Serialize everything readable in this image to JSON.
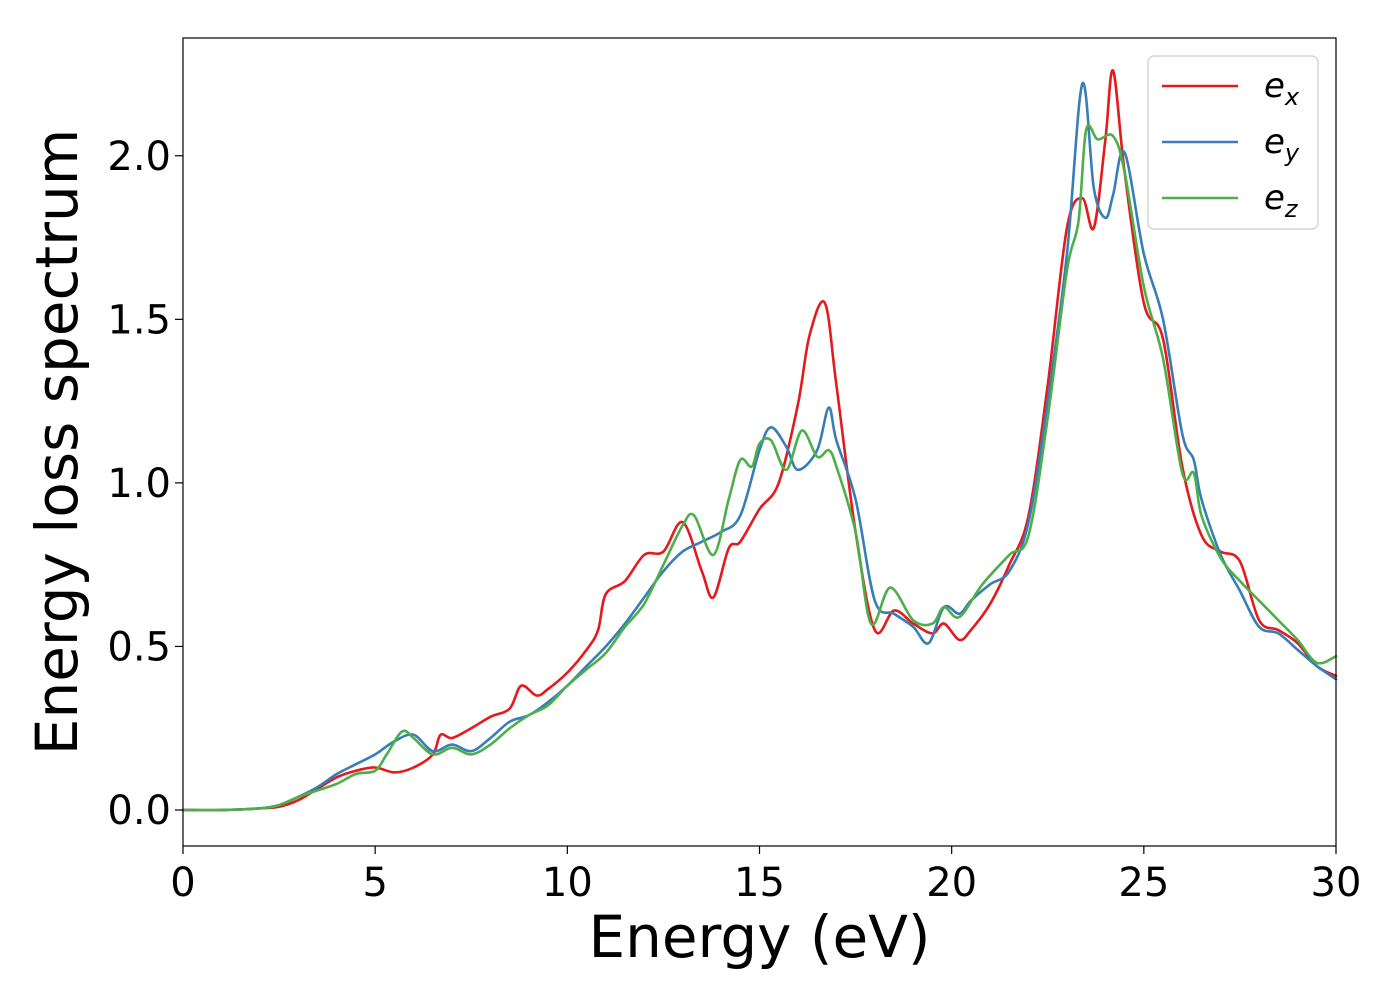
{
  "chart_data": {
    "type": "line",
    "title": "",
    "xlabel": "Energy (eV)",
    "ylabel": "Energy loss spectrum",
    "xlim": [
      0,
      30
    ],
    "ylim": [
      -0.11,
      2.36
    ],
    "xticks": [
      0,
      5,
      10,
      15,
      20,
      25,
      30
    ],
    "xtick_labels": [
      "0",
      "5",
      "10",
      "15",
      "20",
      "25",
      "30"
    ],
    "yticks": [
      0.0,
      0.5,
      1.0,
      1.5,
      2.0
    ],
    "ytick_labels": [
      "0.0",
      "0.5",
      "1.0",
      "1.5",
      "2.0"
    ],
    "grid": false,
    "legend_position": "top-right",
    "series": [
      {
        "name": "e_x",
        "label_base": "e",
        "label_sub": "x",
        "color": "#e41a1c",
        "points": [
          [
            0,
            0
          ],
          [
            1,
            0
          ],
          [
            2,
            0.005
          ],
          [
            2.5,
            0.01
          ],
          [
            3,
            0.03
          ],
          [
            3.5,
            0.065
          ],
          [
            4,
            0.1
          ],
          [
            4.5,
            0.12
          ],
          [
            5,
            0.13
          ],
          [
            5.5,
            0.115
          ],
          [
            6,
            0.13
          ],
          [
            6.5,
            0.17
          ],
          [
            6.7,
            0.23
          ],
          [
            7,
            0.22
          ],
          [
            7.5,
            0.25
          ],
          [
            8,
            0.285
          ],
          [
            8.5,
            0.31
          ],
          [
            8.8,
            0.38
          ],
          [
            9.2,
            0.35
          ],
          [
            9.5,
            0.37
          ],
          [
            10,
            0.42
          ],
          [
            10.5,
            0.49
          ],
          [
            10.8,
            0.55
          ],
          [
            11,
            0.66
          ],
          [
            11.5,
            0.7
          ],
          [
            12,
            0.78
          ],
          [
            12.5,
            0.79
          ],
          [
            13,
            0.88
          ],
          [
            13.5,
            0.73
          ],
          [
            13.8,
            0.65
          ],
          [
            14.2,
            0.8
          ],
          [
            14.5,
            0.82
          ],
          [
            15,
            0.92
          ],
          [
            15.5,
            1.0
          ],
          [
            16,
            1.24
          ],
          [
            16.3,
            1.45
          ],
          [
            16.7,
            1.55
          ],
          [
            17,
            1.3
          ],
          [
            17.5,
            0.85
          ],
          [
            18,
            0.55
          ],
          [
            18.5,
            0.61
          ],
          [
            19,
            0.57
          ],
          [
            19.5,
            0.54
          ],
          [
            19.8,
            0.57
          ],
          [
            20.2,
            0.52
          ],
          [
            20.5,
            0.55
          ],
          [
            21,
            0.63
          ],
          [
            21.5,
            0.75
          ],
          [
            22,
            0.9
          ],
          [
            22.5,
            1.3
          ],
          [
            23,
            1.78
          ],
          [
            23.4,
            1.87
          ],
          [
            23.7,
            1.78
          ],
          [
            24,
            2.05
          ],
          [
            24.2,
            2.26
          ],
          [
            24.5,
            1.95
          ],
          [
            25,
            1.55
          ],
          [
            25.5,
            1.44
          ],
          [
            26,
            1.05
          ],
          [
            26.5,
            0.84
          ],
          [
            27,
            0.79
          ],
          [
            27.5,
            0.76
          ],
          [
            28,
            0.58
          ],
          [
            28.5,
            0.55
          ],
          [
            29,
            0.51
          ],
          [
            29.5,
            0.44
          ],
          [
            30,
            0.41
          ]
        ]
      },
      {
        "name": "e_y",
        "label_base": "e",
        "label_sub": "y",
        "color": "#377eb8",
        "points": [
          [
            0,
            0
          ],
          [
            1,
            0
          ],
          [
            2,
            0.005
          ],
          [
            2.5,
            0.015
          ],
          [
            3,
            0.04
          ],
          [
            3.5,
            0.07
          ],
          [
            4,
            0.11
          ],
          [
            4.5,
            0.14
          ],
          [
            5,
            0.17
          ],
          [
            5.5,
            0.21
          ],
          [
            6,
            0.23
          ],
          [
            6.5,
            0.18
          ],
          [
            7,
            0.2
          ],
          [
            7.5,
            0.18
          ],
          [
            8,
            0.22
          ],
          [
            8.5,
            0.27
          ],
          [
            9,
            0.29
          ],
          [
            9.5,
            0.33
          ],
          [
            10,
            0.38
          ],
          [
            10.5,
            0.44
          ],
          [
            11,
            0.5
          ],
          [
            11.5,
            0.57
          ],
          [
            12,
            0.65
          ],
          [
            12.5,
            0.73
          ],
          [
            13,
            0.79
          ],
          [
            13.5,
            0.82
          ],
          [
            14,
            0.85
          ],
          [
            14.5,
            0.9
          ],
          [
            15,
            1.1
          ],
          [
            15.3,
            1.17
          ],
          [
            15.7,
            1.11
          ],
          [
            16,
            1.04
          ],
          [
            16.5,
            1.1
          ],
          [
            16.8,
            1.23
          ],
          [
            17,
            1.13
          ],
          [
            17.5,
            0.95
          ],
          [
            18,
            0.64
          ],
          [
            18.5,
            0.6
          ],
          [
            19,
            0.56
          ],
          [
            19.4,
            0.51
          ],
          [
            19.8,
            0.62
          ],
          [
            20.2,
            0.6
          ],
          [
            20.5,
            0.64
          ],
          [
            21,
            0.69
          ],
          [
            21.5,
            0.73
          ],
          [
            22,
            0.88
          ],
          [
            22.5,
            1.25
          ],
          [
            23,
            1.7
          ],
          [
            23.4,
            2.22
          ],
          [
            23.7,
            1.9
          ],
          [
            24,
            1.81
          ],
          [
            24.2,
            1.88
          ],
          [
            24.5,
            2.01
          ],
          [
            25,
            1.7
          ],
          [
            25.5,
            1.5
          ],
          [
            26,
            1.15
          ],
          [
            26.3,
            1.07
          ],
          [
            26.5,
            0.95
          ],
          [
            27,
            0.78
          ],
          [
            27.5,
            0.67
          ],
          [
            28,
            0.56
          ],
          [
            28.5,
            0.54
          ],
          [
            29,
            0.49
          ],
          [
            29.5,
            0.44
          ],
          [
            30,
            0.4
          ]
        ]
      },
      {
        "name": "e_z",
        "label_base": "e",
        "label_sub": "z",
        "color": "#4daf4a",
        "points": [
          [
            0,
            0
          ],
          [
            1,
            0
          ],
          [
            2,
            0.005
          ],
          [
            2.5,
            0.015
          ],
          [
            3,
            0.04
          ],
          [
            3.5,
            0.06
          ],
          [
            4,
            0.08
          ],
          [
            4.5,
            0.11
          ],
          [
            5,
            0.12
          ],
          [
            5.3,
            0.17
          ],
          [
            5.7,
            0.24
          ],
          [
            6,
            0.22
          ],
          [
            6.5,
            0.17
          ],
          [
            7,
            0.19
          ],
          [
            7.5,
            0.17
          ],
          [
            8,
            0.2
          ],
          [
            8.5,
            0.25
          ],
          [
            9,
            0.29
          ],
          [
            9.5,
            0.32
          ],
          [
            10,
            0.38
          ],
          [
            10.5,
            0.43
          ],
          [
            11,
            0.48
          ],
          [
            11.5,
            0.56
          ],
          [
            12,
            0.63
          ],
          [
            12.5,
            0.75
          ],
          [
            13,
            0.87
          ],
          [
            13.3,
            0.9
          ],
          [
            13.8,
            0.78
          ],
          [
            14.2,
            0.95
          ],
          [
            14.5,
            1.07
          ],
          [
            14.8,
            1.05
          ],
          [
            15,
            1.12
          ],
          [
            15.3,
            1.13
          ],
          [
            15.7,
            1.04
          ],
          [
            16.1,
            1.16
          ],
          [
            16.5,
            1.08
          ],
          [
            16.8,
            1.1
          ],
          [
            17,
            1.05
          ],
          [
            17.5,
            0.85
          ],
          [
            17.9,
            0.57
          ],
          [
            18.4,
            0.68
          ],
          [
            19,
            0.58
          ],
          [
            19.5,
            0.57
          ],
          [
            19.8,
            0.62
          ],
          [
            20.2,
            0.59
          ],
          [
            20.8,
            0.69
          ],
          [
            21.5,
            0.78
          ],
          [
            22,
            0.84
          ],
          [
            22.5,
            1.2
          ],
          [
            23,
            1.65
          ],
          [
            23.3,
            1.8
          ],
          [
            23.5,
            2.08
          ],
          [
            23.8,
            2.05
          ],
          [
            24.2,
            2.06
          ],
          [
            24.5,
            1.95
          ],
          [
            25,
            1.6
          ],
          [
            25.5,
            1.38
          ],
          [
            26,
            1.03
          ],
          [
            26.3,
            1.03
          ],
          [
            26.5,
            0.9
          ],
          [
            27,
            0.77
          ],
          [
            27.5,
            0.7
          ],
          [
            28,
            0.64
          ],
          [
            28.5,
            0.58
          ],
          [
            29,
            0.52
          ],
          [
            29.5,
            0.45
          ],
          [
            30,
            0.47
          ]
        ]
      }
    ]
  }
}
